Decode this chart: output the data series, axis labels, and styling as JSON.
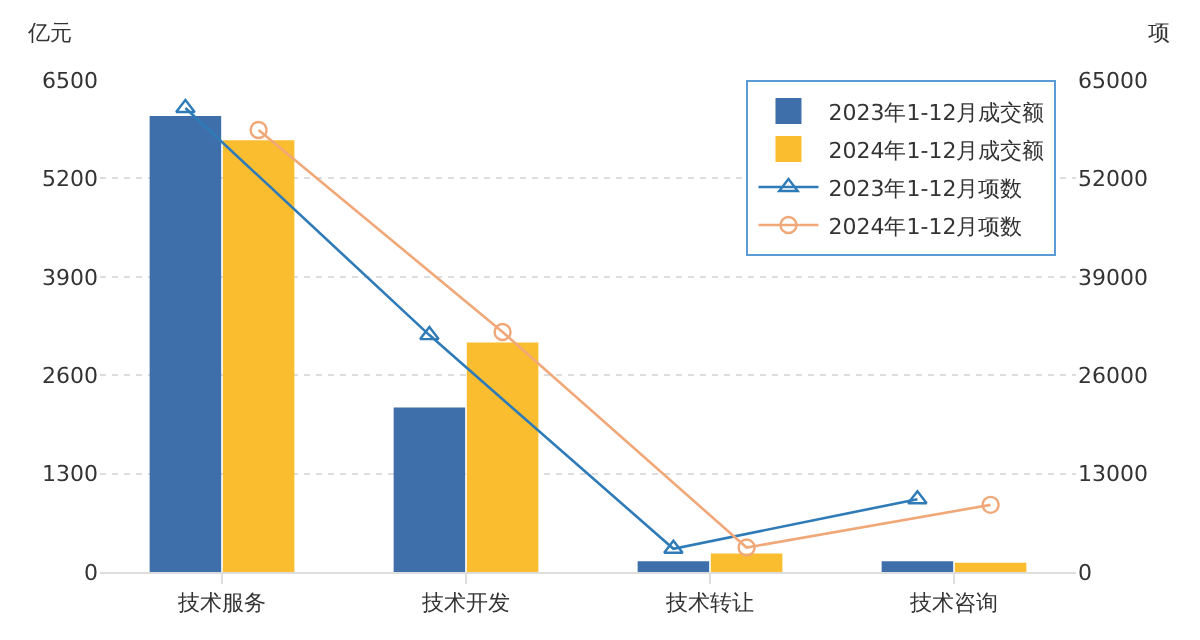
{
  "chart_data": {
    "type": "bar",
    "ylabel": "亿元",
    "y2label": "项",
    "categories": [
      "技术服务",
      "技术开发",
      "技术转让",
      "技术咨询"
    ],
    "series": [
      {
        "name": "2023年1-12月成交额",
        "color": "#3f6faa",
        "values": [
          6010,
          2160,
          130,
          130
        ]
      },
      {
        "name": "2024年1-12月成交额",
        "color": "#fbbd30",
        "values": [
          5690,
          3020,
          230,
          110
        ]
      },
      {
        "name": "2023年1-12月项数",
        "type": "line",
        "axis": "y2",
        "marker": "triangle",
        "color": "#2e7bb8",
        "values": [
          61300,
          31300,
          3070,
          9620
        ]
      },
      {
        "name": "2024年1-12月项数",
        "type": "line",
        "axis": "y2",
        "marker": "circle",
        "color": "#f0a878",
        "values": [
          58400,
          31700,
          3230,
          8870
        ]
      }
    ],
    "ylim": [
      0,
      6500
    ],
    "yticks": [
      0,
      1300,
      2600,
      3900,
      5200,
      6500
    ],
    "y2lim": [
      0,
      65000
    ],
    "y2ticks": [
      0,
      13000,
      26000,
      39000,
      52000,
      65000
    ],
    "grid": "y",
    "legend": "top right"
  }
}
